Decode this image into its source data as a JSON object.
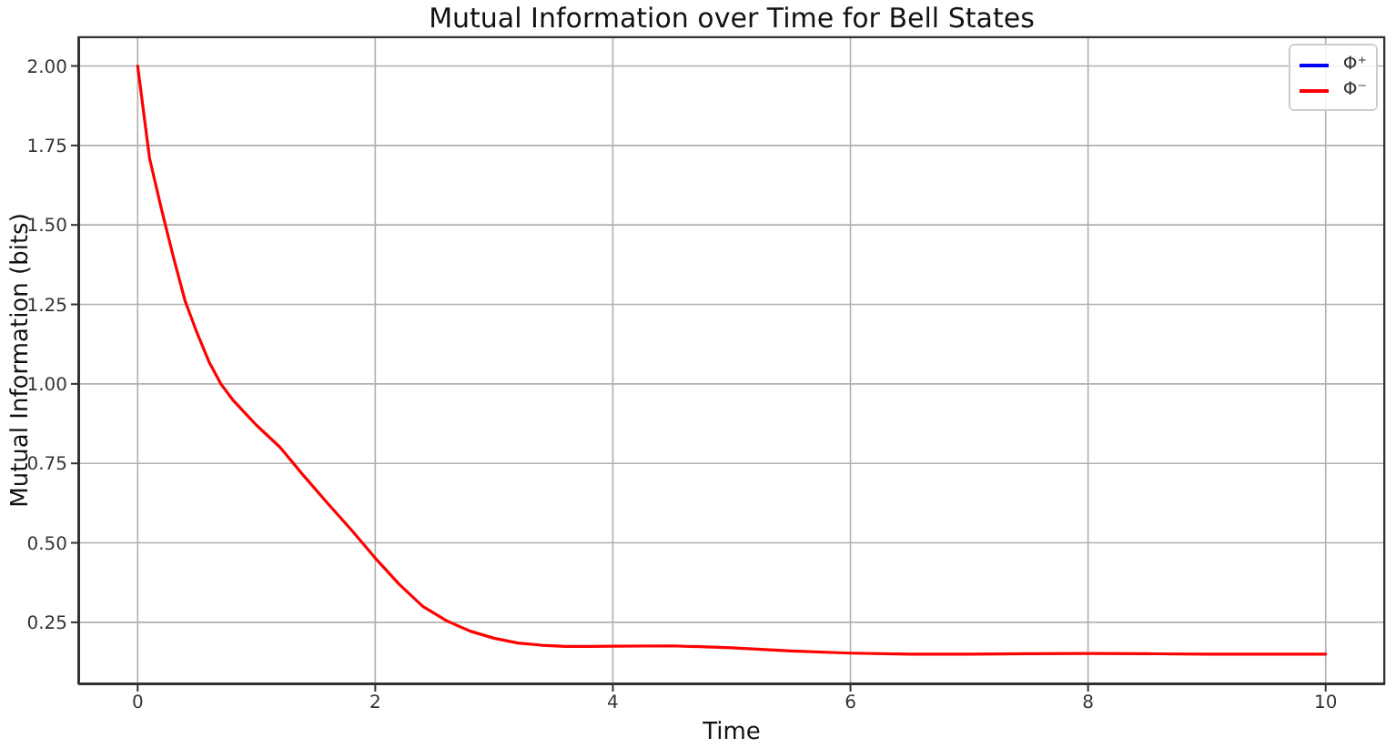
{
  "chart_data": {
    "type": "line",
    "title": "Mutual Information over Time for Bell States",
    "xlabel": "Time",
    "ylabel": "Mutual Information (bits)",
    "x": [
      0,
      0.1,
      0.2,
      0.3,
      0.4,
      0.5,
      0.6,
      0.7,
      0.8,
      0.9,
      1.0,
      1.2,
      1.4,
      1.6,
      1.8,
      2.0,
      2.2,
      2.4,
      2.6,
      2.8,
      3.0,
      3.2,
      3.4,
      3.6,
      3.8,
      4.0,
      4.5,
      5.0,
      5.5,
      6.0,
      6.5,
      7.0,
      7.5,
      8.0,
      8.5,
      9.0,
      9.5,
      10.0
    ],
    "series": [
      {
        "name": "Φ⁺",
        "color": "#0000ff",
        "values": [
          null,
          null,
          null,
          null,
          null,
          null,
          null,
          null,
          null,
          null,
          null,
          null,
          null,
          null,
          null,
          null,
          null,
          null,
          null,
          null,
          null,
          null,
          null,
          null,
          null,
          null,
          null,
          null,
          null,
          null,
          null,
          null,
          null,
          null,
          null,
          null,
          null,
          null
        ]
      },
      {
        "name": "Φ⁻",
        "color": "#ff0000",
        "values": [
          2.0,
          1.71,
          1.55,
          1.4,
          1.26,
          1.16,
          1.07,
          1.0,
          0.95,
          0.91,
          0.87,
          0.8,
          0.71,
          0.624,
          0.54,
          0.452,
          0.37,
          0.3,
          0.255,
          0.222,
          0.2,
          0.185,
          0.178,
          0.174,
          0.174,
          0.175,
          0.176,
          0.17,
          0.16,
          0.153,
          0.15,
          0.15,
          0.151,
          0.152,
          0.151,
          0.15,
          0.15,
          0.15
        ]
      }
    ],
    "xlim": [
      -0.5,
      10.5
    ],
    "xticks": [
      0,
      2,
      4,
      6,
      8,
      10
    ],
    "ylim": [
      0.055,
      2.093
    ],
    "yticks": [
      0.25,
      {
        "value": 0.5,
        "label": "0.50"
      },
      0.75,
      {
        "value": 1,
        "label": "1.00"
      },
      1.25,
      {
        "value": 1.5,
        "label": "1.50"
      },
      1.75,
      {
        "value": 2,
        "label": "2.00"
      }
    ],
    "grid": true,
    "legend": "top right"
  }
}
